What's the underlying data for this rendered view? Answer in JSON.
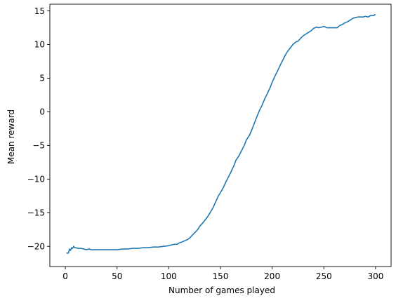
{
  "chart_data": {
    "type": "line",
    "title": "",
    "xlabel": "Number of games played",
    "ylabel": "Mean reward",
    "xlim": [
      -15,
      315
    ],
    "ylim": [
      -23,
      16
    ],
    "xticks": [
      0,
      50,
      100,
      150,
      200,
      250,
      300
    ],
    "yticks": [
      -20,
      -15,
      -10,
      -5,
      0,
      5,
      10,
      15
    ],
    "grid": false,
    "legend": "none",
    "line_color": "#1f77b4",
    "series": [
      {
        "x": [
          1,
          3,
          4,
          5,
          6,
          7,
          8,
          9,
          10,
          12,
          15,
          18,
          20,
          23,
          25,
          28,
          30,
          35,
          40,
          45,
          50,
          55,
          60,
          65,
          70,
          75,
          80,
          85,
          90,
          95,
          100,
          105,
          108,
          110,
          112,
          115,
          118,
          120,
          123,
          125,
          128,
          130,
          133,
          135,
          138,
          140,
          143,
          145,
          148,
          150,
          153,
          155,
          158,
          160,
          163,
          165,
          168,
          170,
          173,
          175,
          178,
          180,
          183,
          185,
          188,
          190,
          193,
          195,
          198,
          200,
          203,
          205,
          208,
          210,
          213,
          215,
          218,
          220,
          223,
          225,
          228,
          230,
          233,
          235,
          238,
          240,
          243,
          245,
          248,
          250,
          253,
          255,
          258,
          260,
          263,
          265,
          268,
          270,
          273,
          275,
          278,
          280,
          283,
          285,
          288,
          290,
          293,
          295,
          298,
          300
        ],
        "y": [
          -21.0,
          -21.0,
          -20.4,
          -20.6,
          -20.2,
          -20.3,
          -20.0,
          -20.2,
          -20.2,
          -20.3,
          -20.3,
          -20.4,
          -20.5,
          -20.4,
          -20.5,
          -20.5,
          -20.5,
          -20.5,
          -20.5,
          -20.5,
          -20.5,
          -20.4,
          -20.4,
          -20.3,
          -20.3,
          -20.2,
          -20.2,
          -20.1,
          -20.1,
          -20.0,
          -19.9,
          -19.7,
          -19.7,
          -19.5,
          -19.4,
          -19.2,
          -19.0,
          -18.8,
          -18.3,
          -18.0,
          -17.5,
          -17.0,
          -16.5,
          -16.1,
          -15.5,
          -15.0,
          -14.2,
          -13.5,
          -12.5,
          -12.0,
          -11.2,
          -10.5,
          -9.6,
          -9.0,
          -8.0,
          -7.2,
          -6.5,
          -5.9,
          -5.0,
          -4.2,
          -3.5,
          -2.8,
          -1.6,
          -0.8,
          0.3,
          0.9,
          2.0,
          2.6,
          3.6,
          4.4,
          5.4,
          6.0,
          7.0,
          7.6,
          8.5,
          9.0,
          9.6,
          10.0,
          10.4,
          10.5,
          11.0,
          11.3,
          11.6,
          11.8,
          12.1,
          12.4,
          12.6,
          12.5,
          12.6,
          12.7,
          12.5,
          12.5,
          12.5,
          12.5,
          12.5,
          12.8,
          13.0,
          13.2,
          13.4,
          13.6,
          13.9,
          14.0,
          14.1,
          14.1,
          14.1,
          14.2,
          14.1,
          14.3,
          14.3,
          14.5
        ]
      }
    ]
  }
}
